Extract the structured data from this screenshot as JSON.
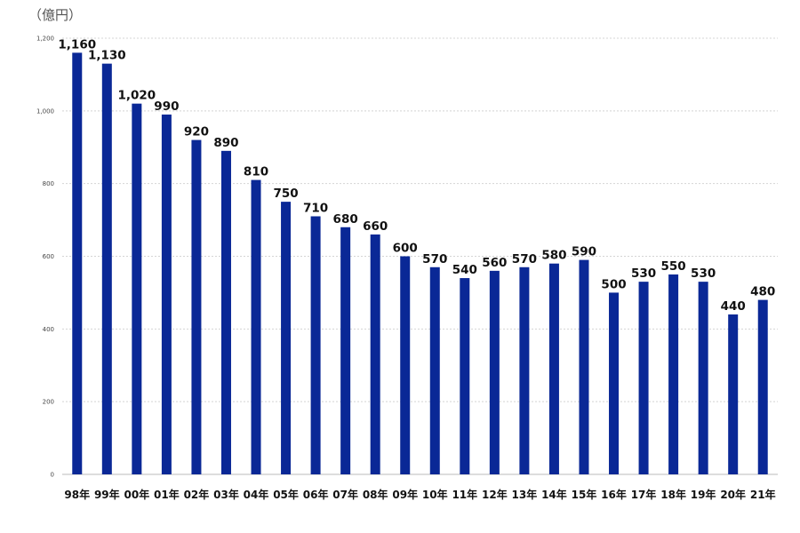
{
  "chart_data": {
    "type": "bar",
    "unit_label": "（億円）",
    "categories": [
      "98年",
      "99年",
      "00年",
      "01年",
      "02年",
      "03年",
      "04年",
      "05年",
      "06年",
      "07年",
      "08年",
      "09年",
      "10年",
      "11年",
      "12年",
      "13年",
      "14年",
      "15年",
      "16年",
      "17年",
      "18年",
      "19年",
      "20年",
      "21年"
    ],
    "values": [
      1160,
      1130,
      1020,
      990,
      920,
      890,
      810,
      750,
      710,
      680,
      660,
      600,
      570,
      540,
      560,
      570,
      580,
      590,
      500,
      530,
      550,
      530,
      440,
      480
    ],
    "value_labels": [
      "1,160",
      "1,130",
      "1,020",
      "990",
      "920",
      "890",
      "810",
      "750",
      "710",
      "680",
      "660",
      "600",
      "570",
      "540",
      "560",
      "570",
      "580",
      "590",
      "500",
      "530",
      "550",
      "530",
      "440",
      "480"
    ],
    "yticks": [
      0,
      200,
      400,
      600,
      800,
      1000,
      1200
    ],
    "ytick_labels": [
      "0",
      "200",
      "400",
      "600",
      "800",
      "1,000",
      "1,200"
    ],
    "ylim": [
      0,
      1200
    ],
    "grid": true,
    "legend": "none",
    "bar_color": "#0A2896"
  }
}
